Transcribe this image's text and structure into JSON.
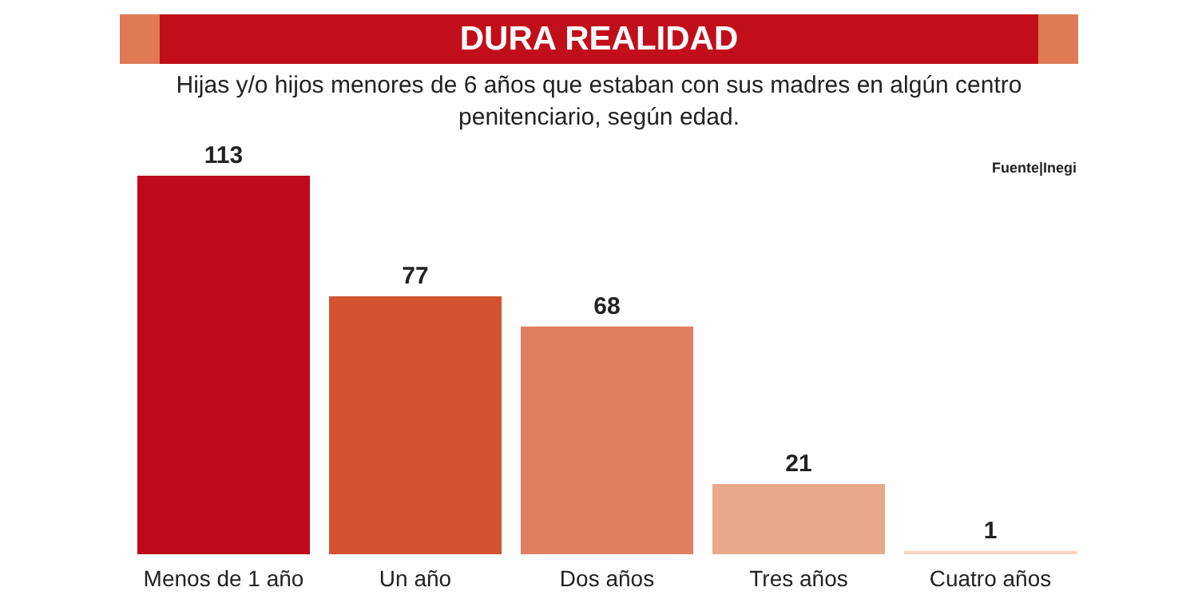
{
  "chart_data": {
    "type": "bar",
    "title": "DURA REALIDAD",
    "subtitle": "Hijas y/o hijos menores de 6 años que estaban con sus madres en algún centro penitenciario, según edad.",
    "categories": [
      "Menos de 1 año",
      "Un año",
      "Dos años",
      "Tres años",
      "Cuatro años"
    ],
    "values": [
      113,
      77,
      68,
      21,
      1
    ],
    "colors": [
      "#c0091b",
      "#d4522f",
      "#e07e61",
      "#eaa88b",
      "#f6d3c0"
    ],
    "data_labels": true,
    "annotations": [
      "Fuente|Inegi"
    ]
  }
}
